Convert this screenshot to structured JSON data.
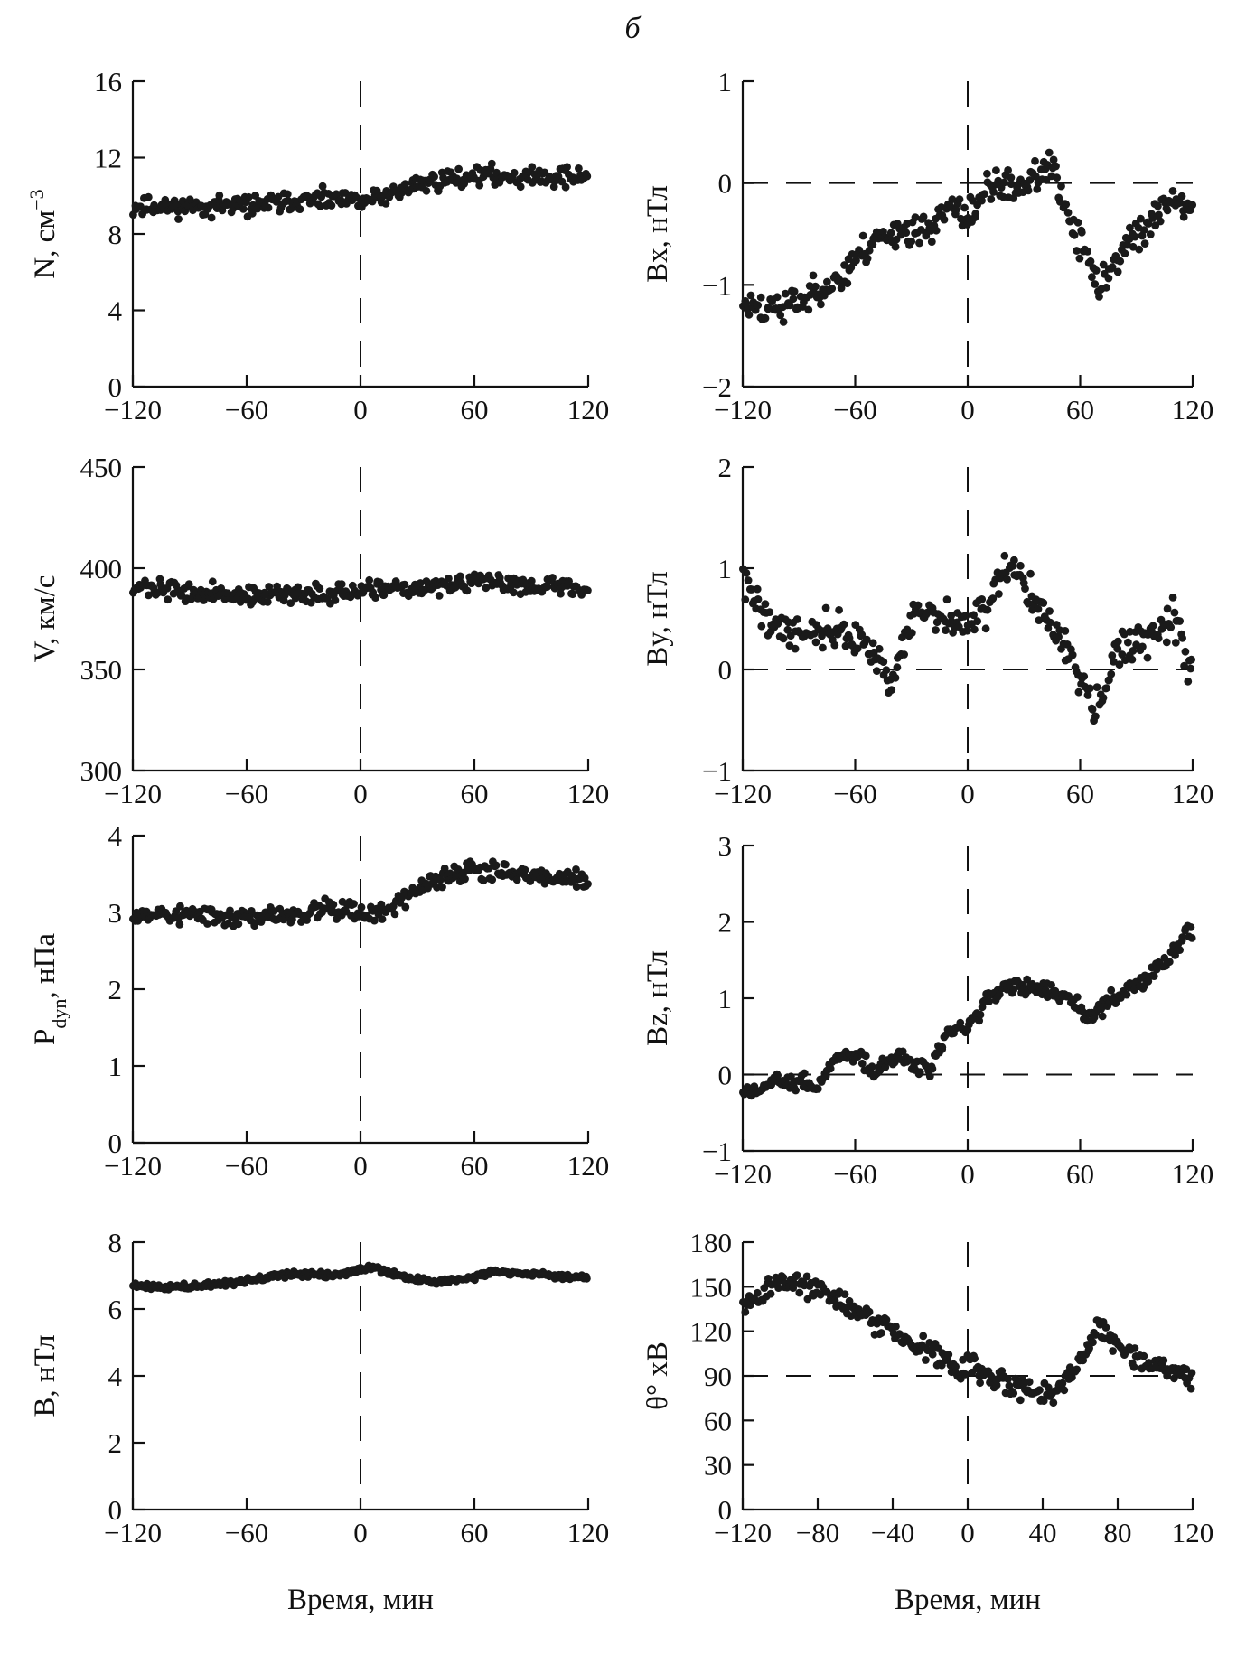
{
  "figure": {
    "panel_letter": "б"
  },
  "chart_data": [
    {
      "id": "N",
      "type": "scatter",
      "ylabel": "N, см",
      "ylabel_sup": "−3",
      "xlim": [
        -120,
        120
      ],
      "ylim": [
        0,
        16
      ],
      "xticks": [
        -120,
        -60,
        0,
        60,
        120
      ],
      "yticks": [
        0,
        4,
        8,
        12,
        16
      ],
      "ytick_labels": [
        "0",
        "4",
        "8",
        "12",
        "16"
      ],
      "xlabel": "",
      "vline": 0,
      "hline": null,
      "trend": [
        [
          -120,
          9.4
        ],
        [
          -60,
          9.5
        ],
        [
          -20,
          9.8
        ],
        [
          0,
          9.7
        ],
        [
          10,
          9.9
        ],
        [
          30,
          10.6
        ],
        [
          60,
          11.1
        ],
        [
          90,
          11.0
        ],
        [
          120,
          11.0
        ]
      ],
      "noise": 0.35,
      "seed": 11
    },
    {
      "id": "Bx",
      "type": "scatter",
      "ylabel": "Bx, нТл",
      "xlim": [
        -120,
        120
      ],
      "ylim": [
        -2,
        1
      ],
      "xticks": [
        -120,
        -60,
        0,
        60,
        120
      ],
      "yticks": [
        -2,
        -1,
        0,
        1
      ],
      "ytick_labels": [
        "−2",
        "−1",
        "0",
        "1"
      ],
      "xlabel": "",
      "vline": 0,
      "hline": 0,
      "trend": [
        [
          -120,
          -1.2
        ],
        [
          -100,
          -1.25
        ],
        [
          -80,
          -1.05
        ],
        [
          -65,
          -0.9
        ],
        [
          -55,
          -0.65
        ],
        [
          -40,
          -0.45
        ],
        [
          -25,
          -0.5
        ],
        [
          -10,
          -0.25
        ],
        [
          0,
          -0.35
        ],
        [
          10,
          -0.05
        ],
        [
          30,
          0.0
        ],
        [
          45,
          0.15
        ],
        [
          55,
          -0.4
        ],
        [
          70,
          -1.0
        ],
        [
          85,
          -0.6
        ],
        [
          100,
          -0.35
        ],
        [
          110,
          -0.15
        ],
        [
          120,
          -0.3
        ]
      ],
      "noise": 0.11,
      "seed": 23
    },
    {
      "id": "V",
      "type": "scatter",
      "ylabel": "V, км/с",
      "xlim": [
        -120,
        120
      ],
      "ylim": [
        300,
        450
      ],
      "xticks": [
        -120,
        -60,
        0,
        60,
        120
      ],
      "yticks": [
        300,
        350,
        400,
        450
      ],
      "ytick_labels": [
        "300",
        "350",
        "400",
        "450"
      ],
      "xlabel": "",
      "vline": 0,
      "hline": null,
      "trend": [
        [
          -120,
          391
        ],
        [
          -90,
          388
        ],
        [
          -60,
          386
        ],
        [
          -30,
          387
        ],
        [
          0,
          388
        ],
        [
          30,
          390
        ],
        [
          60,
          393
        ],
        [
          90,
          392
        ],
        [
          120,
          390
        ]
      ],
      "noise": 3.2,
      "seed": 37
    },
    {
      "id": "By",
      "type": "scatter",
      "ylabel": "By, нТл",
      "xlim": [
        -120,
        120
      ],
      "ylim": [
        -1,
        2
      ],
      "xticks": [
        -120,
        -60,
        0,
        60,
        120
      ],
      "yticks": [
        -1,
        0,
        1,
        2
      ],
      "ytick_labels": [
        "−1",
        "0",
        "1",
        "2"
      ],
      "xlabel": "",
      "vline": 0,
      "hline": 0,
      "trend": [
        [
          -120,
          0.9
        ],
        [
          -105,
          0.45
        ],
        [
          -90,
          0.35
        ],
        [
          -75,
          0.4
        ],
        [
          -60,
          0.3
        ],
        [
          -48,
          0.15
        ],
        [
          -42,
          -0.2
        ],
        [
          -30,
          0.55
        ],
        [
          -15,
          0.5
        ],
        [
          0,
          0.45
        ],
        [
          10,
          0.6
        ],
        [
          20,
          1.0
        ],
        [
          30,
          0.9
        ],
        [
          40,
          0.55
        ],
        [
          55,
          0.1
        ],
        [
          68,
          -0.35
        ],
        [
          80,
          0.15
        ],
        [
          100,
          0.35
        ],
        [
          110,
          0.5
        ],
        [
          118,
          0.05
        ]
      ],
      "noise": 0.12,
      "seed": 41
    },
    {
      "id": "Pdyn",
      "type": "scatter",
      "ylabel": "P",
      "ylabel_sub": "dyn",
      "ylabel_tail": ", нПа",
      "xlim": [
        -120,
        120
      ],
      "ylim": [
        0,
        4
      ],
      "xticks": [
        -120,
        -60,
        0,
        60,
        120
      ],
      "yticks": [
        0,
        1,
        2,
        3,
        4
      ],
      "ytick_labels": [
        "0",
        "1",
        "2",
        "3",
        "4"
      ],
      "xlabel": "",
      "vline": 0,
      "hline": null,
      "trend": [
        [
          -120,
          3.0
        ],
        [
          -80,
          2.95
        ],
        [
          -50,
          2.95
        ],
        [
          -30,
          2.95
        ],
        [
          -20,
          3.1
        ],
        [
          0,
          3.0
        ],
        [
          10,
          3.0
        ],
        [
          30,
          3.3
        ],
        [
          50,
          3.5
        ],
        [
          65,
          3.55
        ],
        [
          80,
          3.55
        ],
        [
          100,
          3.45
        ],
        [
          120,
          3.4
        ]
      ],
      "noise": 0.09,
      "seed": 53
    },
    {
      "id": "Bz",
      "type": "scatter",
      "ylabel": "Bz, нТл",
      "xlim": [
        -120,
        120
      ],
      "ylim": [
        -1,
        3
      ],
      "xticks": [
        -120,
        -60,
        0,
        60,
        120
      ],
      "yticks": [
        -1,
        0,
        1,
        2,
        3
      ],
      "ytick_labels": [
        "−1",
        "0",
        "1",
        "2",
        "3"
      ],
      "xlabel": "",
      "vline": 0,
      "hline": 0,
      "trend": [
        [
          -120,
          -0.2
        ],
        [
          -100,
          -0.1
        ],
        [
          -80,
          -0.15
        ],
        [
          -70,
          0.2
        ],
        [
          -60,
          0.3
        ],
        [
          -50,
          0.05
        ],
        [
          -40,
          0.25
        ],
        [
          -30,
          0.15
        ],
        [
          -20,
          0.1
        ],
        [
          -10,
          0.55
        ],
        [
          0,
          0.6
        ],
        [
          10,
          1.0
        ],
        [
          25,
          1.15
        ],
        [
          40,
          1.1
        ],
        [
          55,
          1.05
        ],
        [
          65,
          0.75
        ],
        [
          80,
          1.05
        ],
        [
          95,
          1.25
        ],
        [
          110,
          1.6
        ],
        [
          118,
          1.9
        ]
      ],
      "noise": 0.08,
      "seed": 67
    },
    {
      "id": "B",
      "type": "scatter",
      "ylabel": "B, нТл",
      "xlim": [
        -120,
        120
      ],
      "ylim": [
        0,
        8
      ],
      "xticks": [
        -120,
        -60,
        0,
        60,
        120
      ],
      "yticks": [
        0,
        2,
        4,
        6,
        8
      ],
      "ytick_labels": [
        "0",
        "2",
        "4",
        "6",
        "8"
      ],
      "xlabel": "Время,  мин",
      "vline": 0,
      "hline": null,
      "trend": [
        [
          -120,
          6.7
        ],
        [
          -90,
          6.65
        ],
        [
          -60,
          6.85
        ],
        [
          -35,
          7.05
        ],
        [
          -15,
          7.0
        ],
        [
          5,
          7.25
        ],
        [
          20,
          7.0
        ],
        [
          40,
          6.8
        ],
        [
          55,
          6.9
        ],
        [
          70,
          7.1
        ],
        [
          100,
          7.0
        ],
        [
          120,
          6.95
        ]
      ],
      "noise": 0.06,
      "seed": 71
    },
    {
      "id": "theta",
      "type": "scatter",
      "ylabel": "θ° xB",
      "xlim": [
        -120,
        120
      ],
      "ylim": [
        0,
        180
      ],
      "xticks": [
        -120,
        -80,
        -40,
        0,
        40,
        80,
        120
      ],
      "yticks": [
        0,
        30,
        60,
        90,
        120,
        150,
        180
      ],
      "ytick_labels": [
        "0",
        "30",
        "60",
        "90",
        "120",
        "150",
        "180"
      ],
      "xlabel": "Время,  мин",
      "vline": 0,
      "hline": 90,
      "trend": [
        [
          -120,
          135
        ],
        [
          -100,
          155
        ],
        [
          -85,
          150
        ],
        [
          -60,
          135
        ],
        [
          -40,
          120
        ],
        [
          -20,
          105
        ],
        [
          -5,
          95
        ],
        [
          0,
          100
        ],
        [
          15,
          85
        ],
        [
          35,
          80
        ],
        [
          45,
          75
        ],
        [
          60,
          100
        ],
        [
          70,
          125
        ],
        [
          80,
          110
        ],
        [
          100,
          95
        ],
        [
          120,
          90
        ]
      ],
      "noise": 5.5,
      "seed": 89
    }
  ]
}
